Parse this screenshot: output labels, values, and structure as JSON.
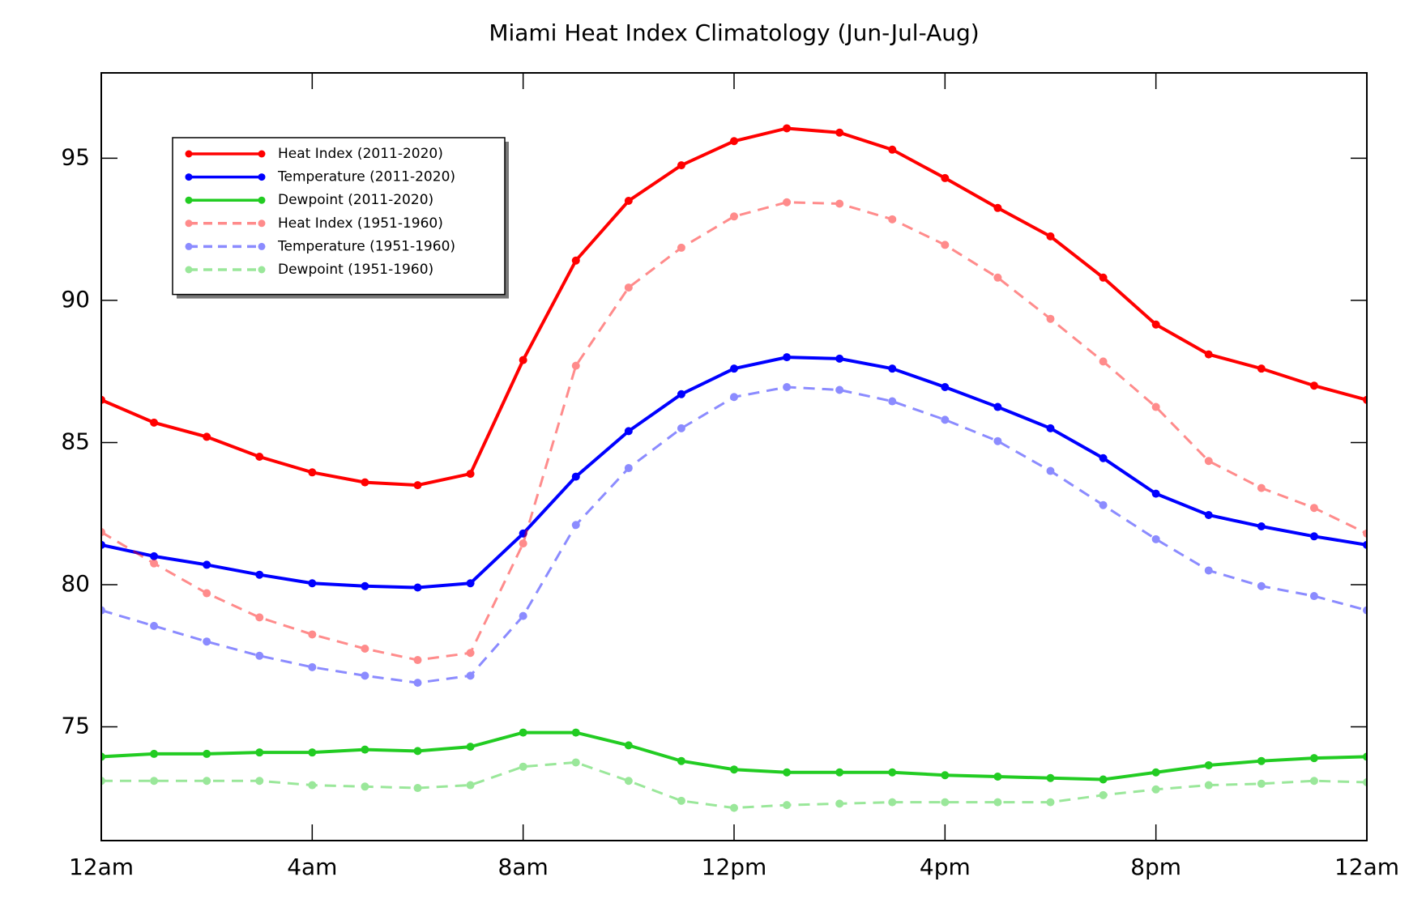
{
  "chart_data": {
    "type": "line",
    "title": "Miami Heat Index Climatology (Jun-Jul-Aug)",
    "x": [
      0,
      1,
      2,
      3,
      4,
      5,
      6,
      7,
      8,
      9,
      10,
      11,
      12,
      13,
      14,
      15,
      16,
      17,
      18,
      19,
      20,
      21,
      22,
      23,
      24
    ],
    "xlim": [
      0,
      24
    ],
    "xticks": [
      {
        "value": 0,
        "label": "12am"
      },
      {
        "value": 4,
        "label": "4am"
      },
      {
        "value": 8,
        "label": "8am"
      },
      {
        "value": 12,
        "label": "12pm"
      },
      {
        "value": 16,
        "label": "4pm"
      },
      {
        "value": 20,
        "label": "8pm"
      },
      {
        "value": 24,
        "label": "12am"
      }
    ],
    "ylim": [
      71,
      98
    ],
    "yticks": [
      75,
      80,
      85,
      90,
      95
    ],
    "grid": false,
    "legend": "upper left",
    "series": [
      {
        "name": "Heat Index (2011-2020)",
        "color": "#ff0000",
        "line_style": "solid",
        "alpha": 1,
        "values": [
          86.5,
          85.7,
          85.2,
          84.5,
          83.95,
          83.6,
          83.5,
          83.9,
          87.9,
          91.4,
          93.5,
          94.75,
          95.6,
          96.05,
          95.9,
          95.3,
          94.3,
          93.25,
          92.25,
          90.8,
          89.15,
          88.1,
          87.6,
          87.0,
          86.5
        ]
      },
      {
        "name": "Temperature (2011-2020)",
        "color": "#0000ff",
        "line_style": "solid",
        "alpha": 1,
        "values": [
          81.4,
          81.0,
          80.7,
          80.35,
          80.05,
          79.95,
          79.9,
          80.05,
          81.8,
          83.8,
          85.4,
          86.7,
          87.6,
          88.0,
          87.95,
          87.6,
          86.95,
          86.25,
          85.5,
          84.45,
          83.2,
          82.45,
          82.05,
          81.7,
          81.4
        ]
      },
      {
        "name": "Dewpoint (2011-2020)",
        "color": "#22cc22",
        "line_style": "solid",
        "alpha": 1,
        "values": [
          73.95,
          74.05,
          74.05,
          74.1,
          74.1,
          74.2,
          74.15,
          74.3,
          74.8,
          74.8,
          74.35,
          73.8,
          73.5,
          73.4,
          73.4,
          73.4,
          73.3,
          73.25,
          73.2,
          73.15,
          73.4,
          73.65,
          73.8,
          73.9,
          73.95
        ]
      },
      {
        "name": "Heat Index (1951-1960)",
        "color": "#ff0000",
        "line_style": "dashed",
        "alpha": 0.45,
        "values": [
          81.85,
          80.75,
          79.7,
          78.85,
          78.25,
          77.75,
          77.35,
          77.6,
          81.45,
          87.7,
          90.45,
          91.85,
          92.95,
          93.45,
          93.4,
          92.85,
          91.95,
          90.8,
          89.35,
          87.85,
          86.25,
          84.35,
          83.4,
          82.7,
          81.8
        ]
      },
      {
        "name": "Temperature (1951-1960)",
        "color": "#0000ff",
        "line_style": "dashed",
        "alpha": 0.45,
        "values": [
          79.1,
          78.55,
          78.0,
          77.5,
          77.1,
          76.8,
          76.55,
          76.8,
          78.9,
          82.1,
          84.1,
          85.5,
          86.6,
          86.95,
          86.85,
          86.45,
          85.8,
          85.05,
          84.0,
          82.8,
          81.6,
          80.5,
          79.95,
          79.6,
          79.1
        ]
      },
      {
        "name": "Dewpoint (1951-1960)",
        "color": "#22cc22",
        "line_style": "dashed",
        "alpha": 0.45,
        "values": [
          73.1,
          73.1,
          73.1,
          73.1,
          72.95,
          72.9,
          72.85,
          72.95,
          73.6,
          73.75,
          73.1,
          72.4,
          72.15,
          72.25,
          72.3,
          72.35,
          72.35,
          72.35,
          72.35,
          72.6,
          72.8,
          72.95,
          73.0,
          73.1,
          73.05
        ]
      }
    ]
  }
}
